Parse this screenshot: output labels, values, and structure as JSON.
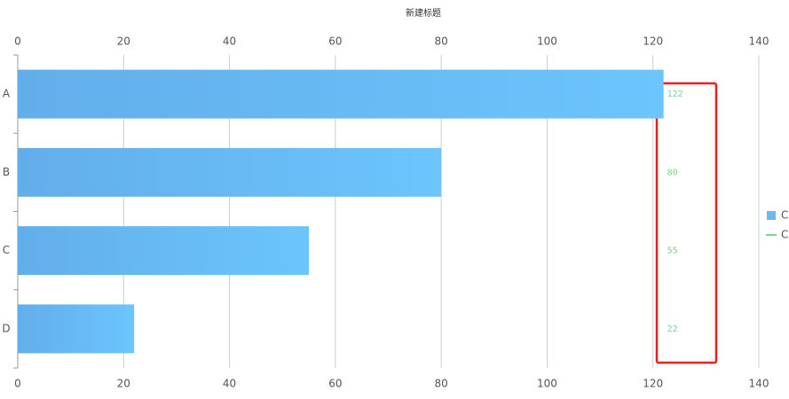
{
  "chart_data": {
    "type": "bar",
    "title": "新建标题",
    "categories": [
      "A",
      "B",
      "C",
      "D"
    ],
    "series": [
      {
        "name": "C",
        "color": "#6ab9f3",
        "values": [
          122,
          80,
          55,
          22
        ]
      },
      {
        "name": "C",
        "type": "line",
        "color": "#7ed38e",
        "values": [
          122,
          80,
          55,
          22
        ]
      }
    ],
    "xlim": [
      0,
      140
    ],
    "xticks": [
      0,
      20,
      40,
      60,
      80,
      100,
      120,
      140
    ],
    "grid": true
  }
}
